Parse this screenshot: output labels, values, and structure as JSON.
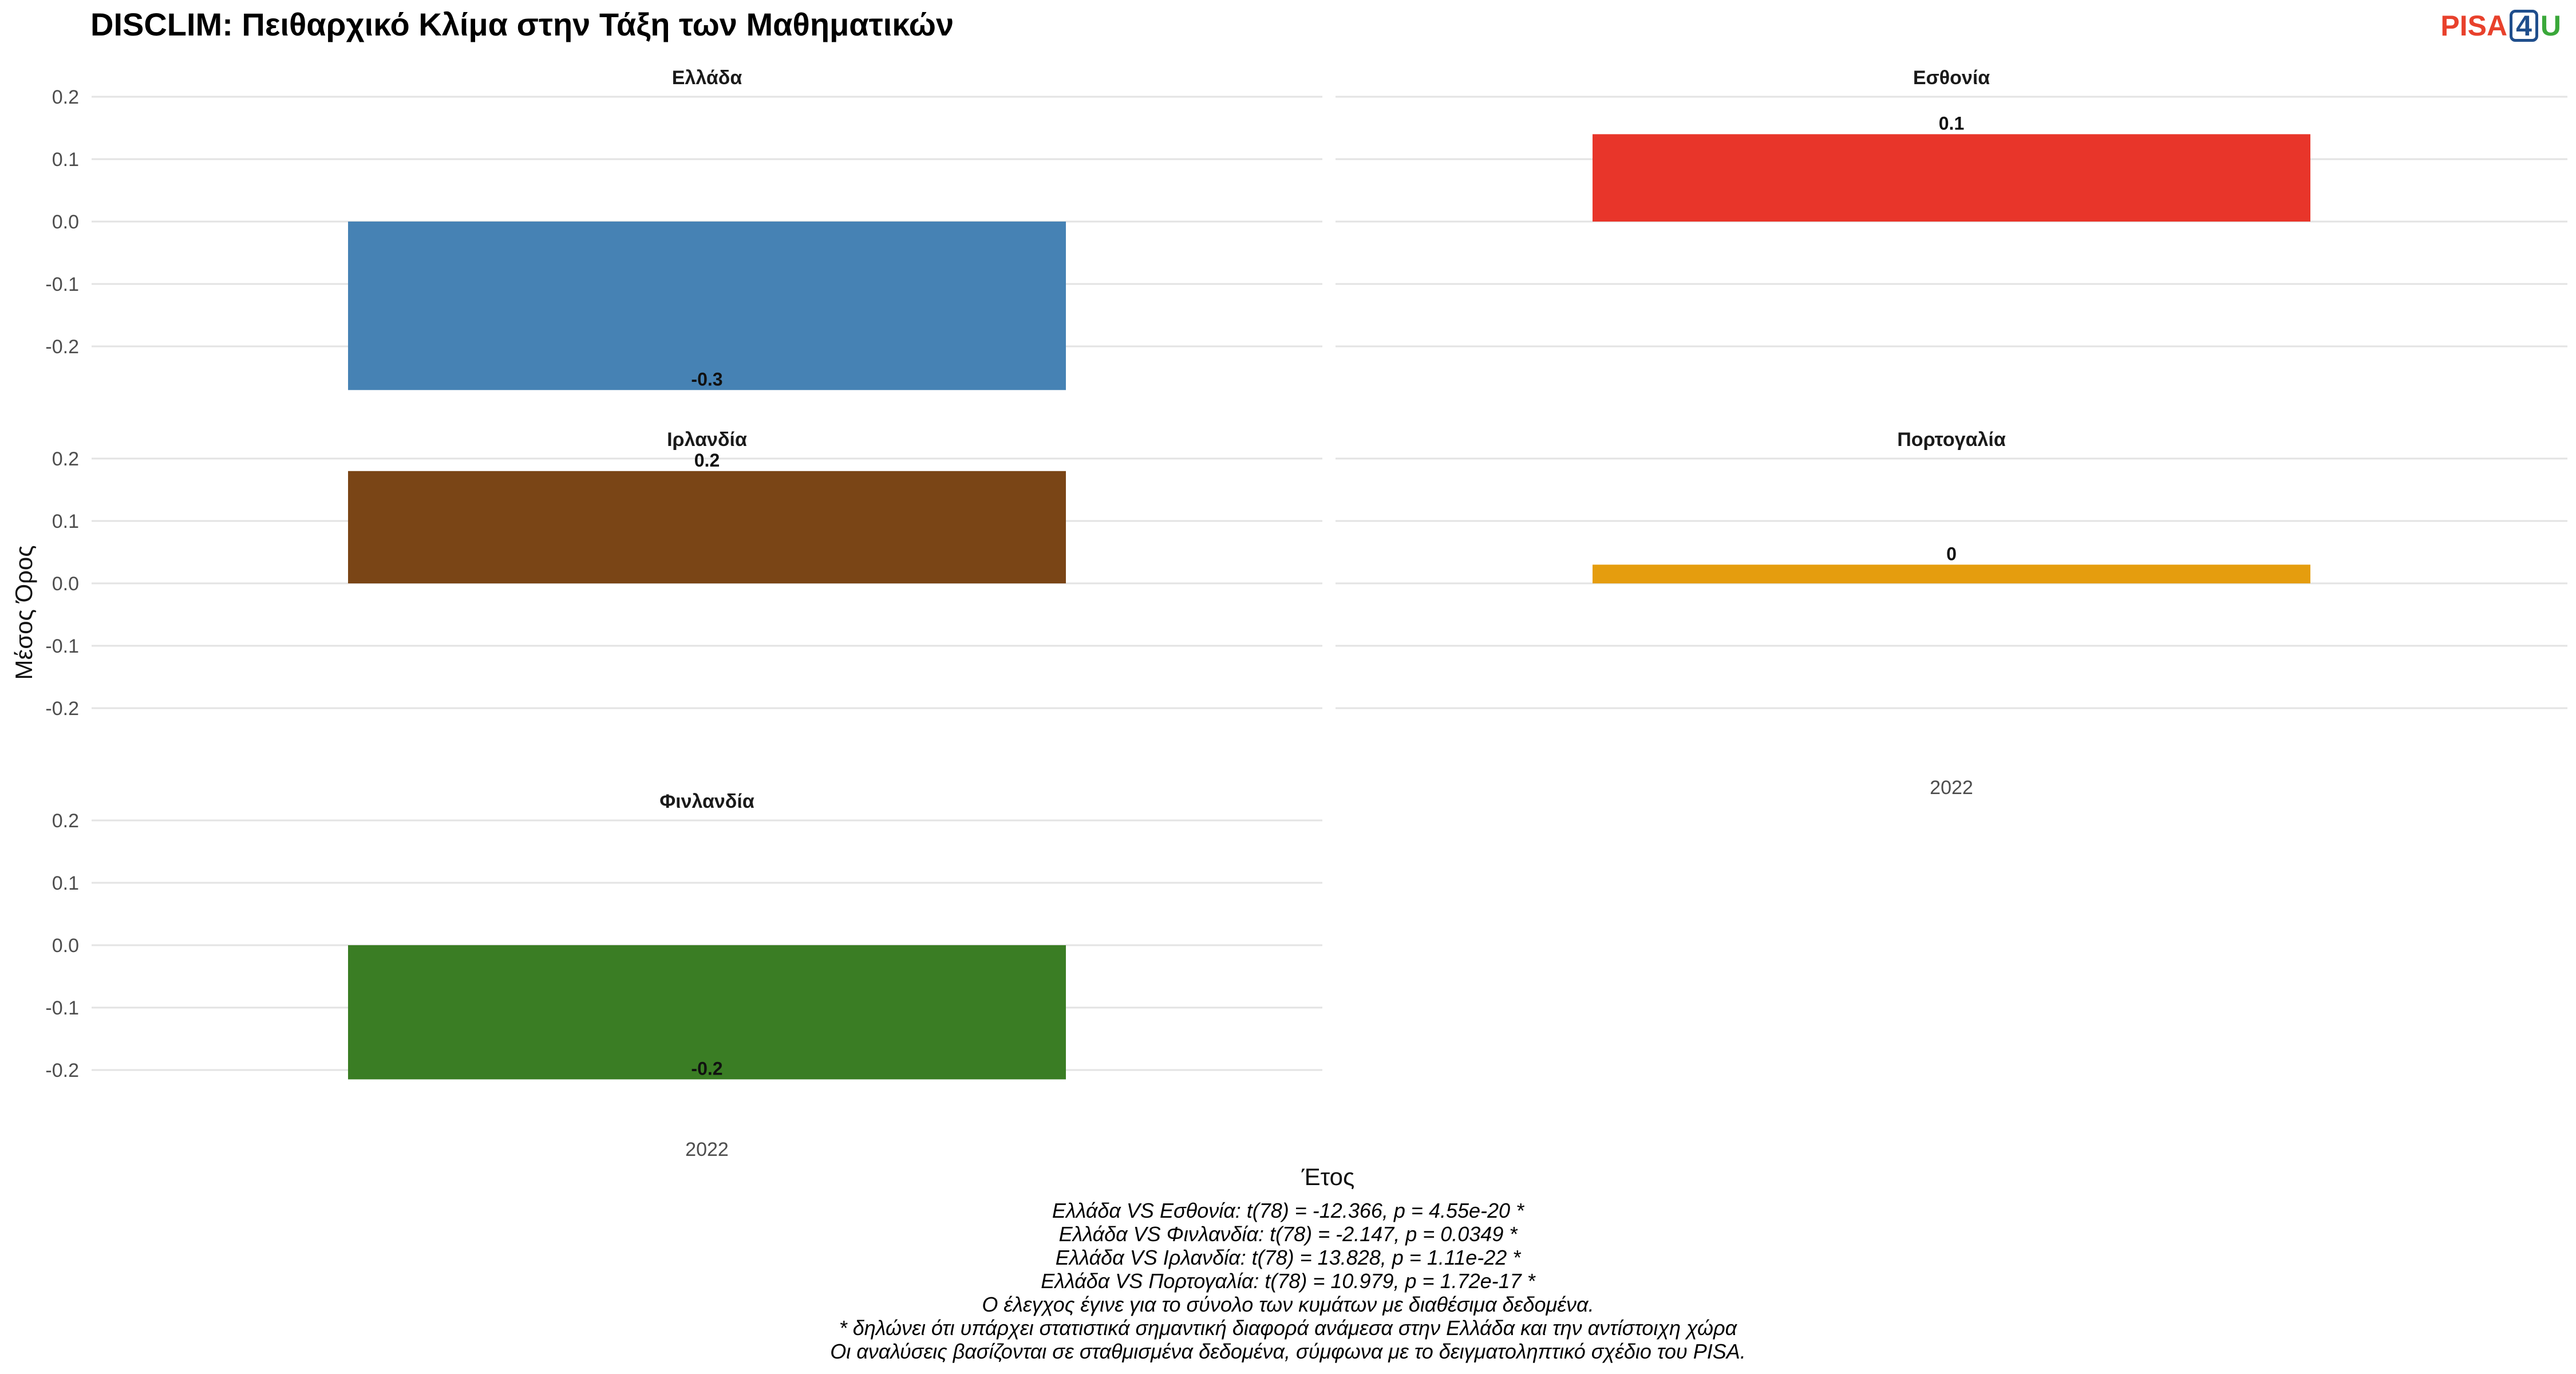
{
  "title": "DISCLIM: Πειθαρχικό Κλίμα στην Τάξη των Μαθηματικών",
  "logo": {
    "part1": "PISA",
    "part2": "4",
    "part3": "U"
  },
  "chart_data": {
    "type": "bar",
    "xlabel": "Έτος",
    "ylabel": "Μέσος Όρος",
    "ylim": [
      -0.2,
      0.2
    ],
    "yticks": [
      "0.2",
      "0.1",
      "0.0",
      "-0.1",
      "-0.2"
    ],
    "grid": true,
    "facets": [
      {
        "name": "Ελλάδα",
        "category": "2022",
        "value": -0.27,
        "label": "-0.3",
        "color": "#4682b4",
        "x_label_shown": false
      },
      {
        "name": "Εσθονία",
        "category": "2022",
        "value": 0.14,
        "label": "0.1",
        "color": "#e8352a",
        "x_label_shown": false
      },
      {
        "name": "Ιρλανδία",
        "category": "2022",
        "value": 0.18,
        "label": "0.2",
        "color": "#7a4516",
        "x_label_shown": false
      },
      {
        "name": "Πορτογαλία",
        "category": "2022",
        "value": 0.03,
        "label": "0",
        "color": "#e59d0e",
        "x_label_shown": true
      },
      {
        "name": "Φινλανδία",
        "category": "2022",
        "value": -0.215,
        "label": "-0.2",
        "color": "#3a7d24",
        "x_label_shown": true
      }
    ]
  },
  "footnotes": [
    "Ελλάδα VS Εσθονία: t(78) = -12.366, p = 4.55e-20 *",
    "Ελλάδα VS Φινλανδία: t(78) = -2.147, p = 0.0349 *",
    "Ελλάδα VS Ιρλανδία: t(78) = 13.828, p = 1.11e-22 *",
    "Ελλάδα VS Πορτογαλία: t(78) = 10.979, p = 1.72e-17 *",
    "Ο έλεγχος έγινε για το σύνολο των κυμάτων με διαθέσιμα δεδομένα.",
    "* δηλώνει ότι υπάρχει στατιστικά σημαντική διαφορά ανάμεσα στην Ελλάδα και την αντίστοιχη χώρα",
    "Οι αναλύσεις βασίζονται σε σταθμισμένα δεδομένα, σύμφωνα με το δειγματοληπτικό σχέδιο του PISA."
  ]
}
